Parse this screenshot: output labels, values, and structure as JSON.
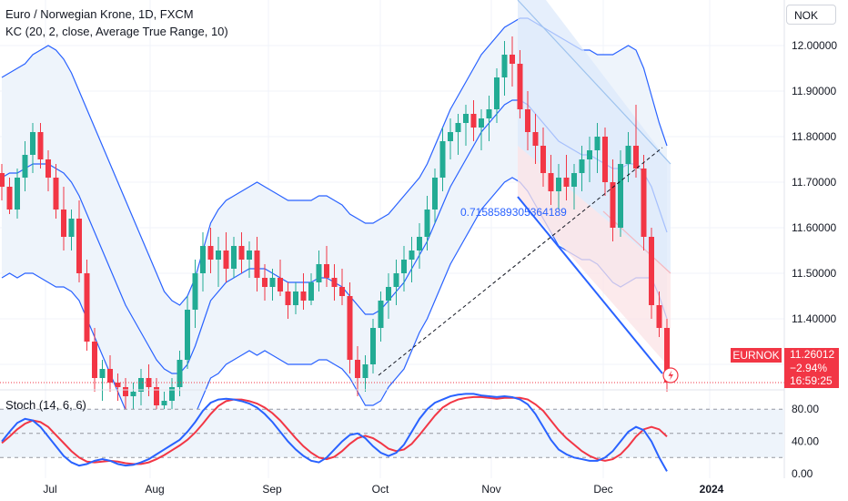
{
  "header": {
    "title": "Euro / Norwegian Krone, 1D, FXCM",
    "indicator": "KC (20, 2, close, Average True Range, 10)"
  },
  "currency_button": "NOK",
  "oscillator": {
    "title": "Stoch (14, 6, 6)"
  },
  "annotation": {
    "text": "0.715858930536418​9"
  },
  "price_badge": {
    "symbol": "EURNOK",
    "price": "11.26012",
    "change": "−2.94%",
    "countdown": "16:59:25"
  },
  "price_axis": [
    "12.00000",
    "11.90000",
    "11.80000",
    "11.70000",
    "11.60000",
    "11.50000",
    "11.40000"
  ],
  "stoch_axis": [
    "80.00",
    "40.00",
    "0.00"
  ],
  "time_axis": [
    "Jul",
    "Aug",
    "Sep",
    "Oct",
    "Nov",
    "Dec",
    "2024"
  ],
  "colors": {
    "up": "#22ab94",
    "down": "#f23645",
    "band": "#2962ff",
    "band_fill": "#eef4fb",
    "stoch_k": "#2962ff",
    "stoch_d": "#f23645"
  },
  "chart_data": {
    "type": "candlestick",
    "symbol": "EURNOK",
    "interval": "1D",
    "y_range": [
      11.26,
      12.07
    ],
    "stoch_range": [
      0,
      100
    ],
    "stoch_levels": [
      80,
      50,
      20
    ],
    "candles": [
      [
        11.72,
        11.74,
        11.66,
        11.69
      ],
      [
        11.69,
        11.71,
        11.63,
        11.64
      ],
      [
        11.64,
        11.73,
        11.62,
        11.71
      ],
      [
        11.71,
        11.79,
        11.68,
        11.76
      ],
      [
        11.76,
        11.83,
        11.72,
        11.81
      ],
      [
        11.81,
        11.83,
        11.73,
        11.75
      ],
      [
        11.75,
        11.77,
        11.68,
        11.71
      ],
      [
        11.71,
        11.74,
        11.62,
        11.64
      ],
      [
        11.64,
        11.69,
        11.55,
        11.58
      ],
      [
        11.58,
        11.64,
        11.55,
        11.62
      ],
      [
        11.62,
        11.66,
        11.48,
        11.5
      ],
      [
        11.5,
        11.53,
        11.33,
        11.35
      ],
      [
        11.35,
        11.38,
        11.24,
        11.27
      ],
      [
        11.27,
        11.31,
        11.22,
        11.29
      ],
      [
        11.29,
        11.32,
        11.24,
        11.26
      ],
      [
        11.26,
        11.28,
        11.22,
        11.25
      ],
      [
        11.25,
        11.27,
        11.2,
        11.23
      ],
      [
        11.23,
        11.26,
        11.19,
        11.24
      ],
      [
        11.24,
        11.29,
        11.21,
        11.27
      ],
      [
        11.27,
        11.3,
        11.23,
        11.25
      ],
      [
        11.25,
        11.27,
        11.18,
        11.21
      ],
      [
        11.21,
        11.24,
        11.16,
        11.22
      ],
      [
        11.22,
        11.27,
        11.19,
        11.25
      ],
      [
        11.25,
        11.33,
        11.23,
        11.31
      ],
      [
        11.31,
        11.45,
        11.29,
        11.42
      ],
      [
        11.42,
        11.53,
        11.38,
        11.5
      ],
      [
        11.5,
        11.59,
        11.46,
        11.56
      ],
      [
        11.56,
        11.6,
        11.5,
        11.53
      ],
      [
        11.53,
        11.58,
        11.47,
        11.55
      ],
      [
        11.55,
        11.59,
        11.48,
        11.51
      ],
      [
        11.51,
        11.58,
        11.49,
        11.56
      ],
      [
        11.56,
        11.59,
        11.5,
        11.53
      ],
      [
        11.53,
        11.57,
        11.49,
        11.55
      ],
      [
        11.55,
        11.58,
        11.46,
        11.49
      ],
      [
        11.49,
        11.52,
        11.44,
        11.47
      ],
      [
        11.47,
        11.51,
        11.44,
        11.49
      ],
      [
        11.49,
        11.53,
        11.45,
        11.46
      ],
      [
        11.46,
        11.48,
        11.4,
        11.43
      ],
      [
        11.43,
        11.48,
        11.41,
        11.46
      ],
      [
        11.46,
        11.5,
        11.42,
        11.44
      ],
      [
        11.44,
        11.5,
        11.43,
        11.48
      ],
      [
        11.48,
        11.55,
        11.46,
        11.52
      ],
      [
        11.52,
        11.56,
        11.47,
        11.49
      ],
      [
        11.49,
        11.52,
        11.44,
        11.47
      ],
      [
        11.47,
        11.51,
        11.43,
        11.45
      ],
      [
        11.45,
        11.48,
        11.28,
        11.31
      ],
      [
        11.31,
        11.34,
        11.23,
        11.27
      ],
      [
        11.27,
        11.32,
        11.24,
        11.3
      ],
      [
        11.3,
        11.4,
        11.28,
        11.38
      ],
      [
        11.38,
        11.46,
        11.35,
        11.44
      ],
      [
        11.44,
        11.5,
        11.4,
        11.47
      ],
      [
        11.47,
        11.53,
        11.43,
        11.5
      ],
      [
        11.5,
        11.56,
        11.46,
        11.53
      ],
      [
        11.53,
        11.58,
        11.48,
        11.55
      ],
      [
        11.55,
        11.61,
        11.51,
        11.58
      ],
      [
        11.58,
        11.67,
        11.55,
        11.64
      ],
      [
        11.64,
        11.73,
        11.61,
        11.71
      ],
      [
        11.71,
        11.82,
        11.68,
        11.79
      ],
      [
        11.79,
        11.84,
        11.75,
        11.81
      ],
      [
        11.81,
        11.85,
        11.76,
        11.83
      ],
      [
        11.83,
        11.87,
        11.78,
        11.85
      ],
      [
        11.85,
        11.88,
        11.79,
        11.82
      ],
      [
        11.82,
        11.86,
        11.77,
        11.84
      ],
      [
        11.84,
        11.89,
        11.79,
        11.86
      ],
      [
        11.86,
        11.95,
        11.83,
        11.93
      ],
      [
        11.93,
        12.01,
        11.89,
        11.98
      ],
      [
        11.98,
        12.02,
        11.91,
        11.96
      ],
      [
        11.96,
        11.99,
        11.84,
        11.86
      ],
      [
        11.86,
        11.9,
        11.77,
        11.81
      ],
      [
        11.81,
        11.85,
        11.74,
        11.78
      ],
      [
        11.78,
        11.82,
        11.69,
        11.72
      ],
      [
        11.72,
        11.76,
        11.65,
        11.68
      ],
      [
        11.68,
        11.74,
        11.64,
        11.71
      ],
      [
        11.71,
        11.76,
        11.66,
        11.69
      ],
      [
        11.69,
        11.74,
        11.64,
        11.72
      ],
      [
        11.72,
        11.78,
        11.68,
        11.75
      ],
      [
        11.75,
        11.8,
        11.7,
        11.77
      ],
      [
        11.77,
        11.83,
        11.72,
        11.8
      ],
      [
        11.8,
        11.82,
        11.67,
        11.7
      ],
      [
        11.7,
        11.75,
        11.57,
        11.6
      ],
      [
        11.6,
        11.77,
        11.58,
        11.74
      ],
      [
        11.74,
        11.81,
        11.7,
        11.78
      ],
      [
        11.78,
        11.87,
        11.71,
        11.73
      ],
      [
        11.73,
        11.76,
        11.55,
        11.58
      ],
      [
        11.58,
        11.6,
        11.4,
        11.43
      ],
      [
        11.43,
        11.46,
        11.36,
        11.38
      ],
      [
        11.38,
        11.4,
        11.24,
        11.26
      ]
    ],
    "keltner": {
      "upper": [
        11.93,
        11.94,
        11.95,
        11.96,
        11.98,
        11.99,
        12.0,
        11.99,
        11.97,
        11.94,
        11.9,
        11.86,
        11.82,
        11.78,
        11.74,
        11.7,
        11.66,
        11.62,
        11.58,
        11.54,
        11.5,
        11.46,
        11.44,
        11.43,
        11.45,
        11.49,
        11.55,
        11.61,
        11.64,
        11.66,
        11.67,
        11.68,
        11.69,
        11.7,
        11.69,
        11.68,
        11.67,
        11.66,
        11.66,
        11.66,
        11.66,
        11.67,
        11.67,
        11.66,
        11.65,
        11.63,
        11.62,
        11.61,
        11.61,
        11.62,
        11.63,
        11.65,
        11.67,
        11.69,
        11.71,
        11.74,
        11.78,
        11.82,
        11.86,
        11.89,
        11.92,
        11.95,
        11.98,
        12.0,
        12.02,
        12.04,
        12.05,
        12.06,
        12.06,
        12.05,
        12.04,
        12.03,
        12.02,
        12.01,
        12.0,
        11.99,
        11.99,
        11.98,
        11.98,
        11.98,
        11.99,
        12.0,
        11.99,
        11.95,
        11.89,
        11.83,
        11.78
      ],
      "middle": [
        11.71,
        11.72,
        11.72,
        11.73,
        11.74,
        11.74,
        11.74,
        11.73,
        11.72,
        11.7,
        11.67,
        11.63,
        11.59,
        11.55,
        11.51,
        11.47,
        11.43,
        11.4,
        11.37,
        11.34,
        11.31,
        11.29,
        11.28,
        11.28,
        11.3,
        11.34,
        11.39,
        11.44,
        11.46,
        11.48,
        11.49,
        11.5,
        11.51,
        11.51,
        11.51,
        11.5,
        11.49,
        11.48,
        11.48,
        11.48,
        11.48,
        11.49,
        11.49,
        11.48,
        11.47,
        11.45,
        11.43,
        11.41,
        11.41,
        11.42,
        11.44,
        11.46,
        11.48,
        11.51,
        11.54,
        11.57,
        11.61,
        11.65,
        11.69,
        11.72,
        11.75,
        11.78,
        11.81,
        11.83,
        11.85,
        11.87,
        11.88,
        11.88,
        11.87,
        11.85,
        11.83,
        11.81,
        11.79,
        11.78,
        11.77,
        11.76,
        11.76,
        11.75,
        11.74,
        11.73,
        11.73,
        11.74,
        11.74,
        11.72,
        11.69,
        11.64,
        11.59
      ],
      "lower": [
        11.49,
        11.5,
        11.49,
        11.5,
        11.5,
        11.49,
        11.48,
        11.47,
        11.47,
        11.46,
        11.44,
        11.4,
        11.36,
        11.32,
        11.28,
        11.24,
        11.2,
        11.18,
        11.16,
        11.14,
        11.12,
        11.12,
        11.12,
        11.13,
        11.15,
        11.19,
        11.23,
        11.27,
        11.28,
        11.3,
        11.31,
        11.32,
        11.33,
        11.32,
        11.33,
        11.32,
        11.31,
        11.3,
        11.3,
        11.3,
        11.3,
        11.31,
        11.31,
        11.3,
        11.29,
        11.27,
        11.24,
        11.21,
        11.21,
        11.22,
        11.25,
        11.27,
        11.29,
        11.33,
        11.37,
        11.4,
        11.44,
        11.48,
        11.52,
        11.55,
        11.58,
        11.61,
        11.64,
        11.66,
        11.68,
        11.7,
        11.71,
        11.7,
        11.68,
        11.65,
        11.62,
        11.59,
        11.56,
        11.55,
        11.54,
        11.53,
        11.53,
        11.52,
        11.5,
        11.48,
        11.47,
        11.48,
        11.49,
        11.49,
        11.49,
        11.45,
        11.4
      ]
    },
    "stoch": {
      "k": [
        40,
        52,
        63,
        68,
        66,
        58,
        46,
        34,
        22,
        14,
        10,
        12,
        16,
        18,
        16,
        12,
        10,
        11,
        14,
        18,
        24,
        30,
        36,
        42,
        52,
        64,
        78,
        88,
        92,
        93,
        92,
        90,
        87,
        82,
        74,
        64,
        52,
        40,
        30,
        22,
        16,
        14,
        20,
        30,
        40,
        48,
        50,
        44,
        34,
        26,
        22,
        26,
        36,
        52,
        68,
        80,
        88,
        92,
        96,
        98,
        99,
        99,
        97,
        96,
        95,
        96,
        95,
        92,
        86,
        74,
        58,
        42,
        30,
        24,
        20,
        18,
        16,
        16,
        20,
        28,
        40,
        52,
        58,
        54,
        40,
        20,
        3
      ],
      "d": [
        38,
        46,
        55,
        62,
        66,
        64,
        58,
        48,
        38,
        28,
        20,
        15,
        14,
        15,
        16,
        15,
        13,
        12,
        12,
        14,
        18,
        23,
        29,
        35,
        42,
        51,
        62,
        74,
        84,
        90,
        92,
        92,
        90,
        87,
        82,
        75,
        66,
        55,
        44,
        34,
        26,
        20,
        18,
        21,
        28,
        37,
        44,
        47,
        44,
        38,
        31,
        28,
        30,
        37,
        48,
        60,
        72,
        82,
        88,
        92,
        94,
        95,
        95,
        94,
        93,
        94,
        94,
        94,
        92,
        86,
        78,
        66,
        54,
        44,
        36,
        28,
        22,
        18,
        16,
        18,
        24,
        34,
        46,
        55,
        58,
        55,
        46
      ]
    }
  }
}
